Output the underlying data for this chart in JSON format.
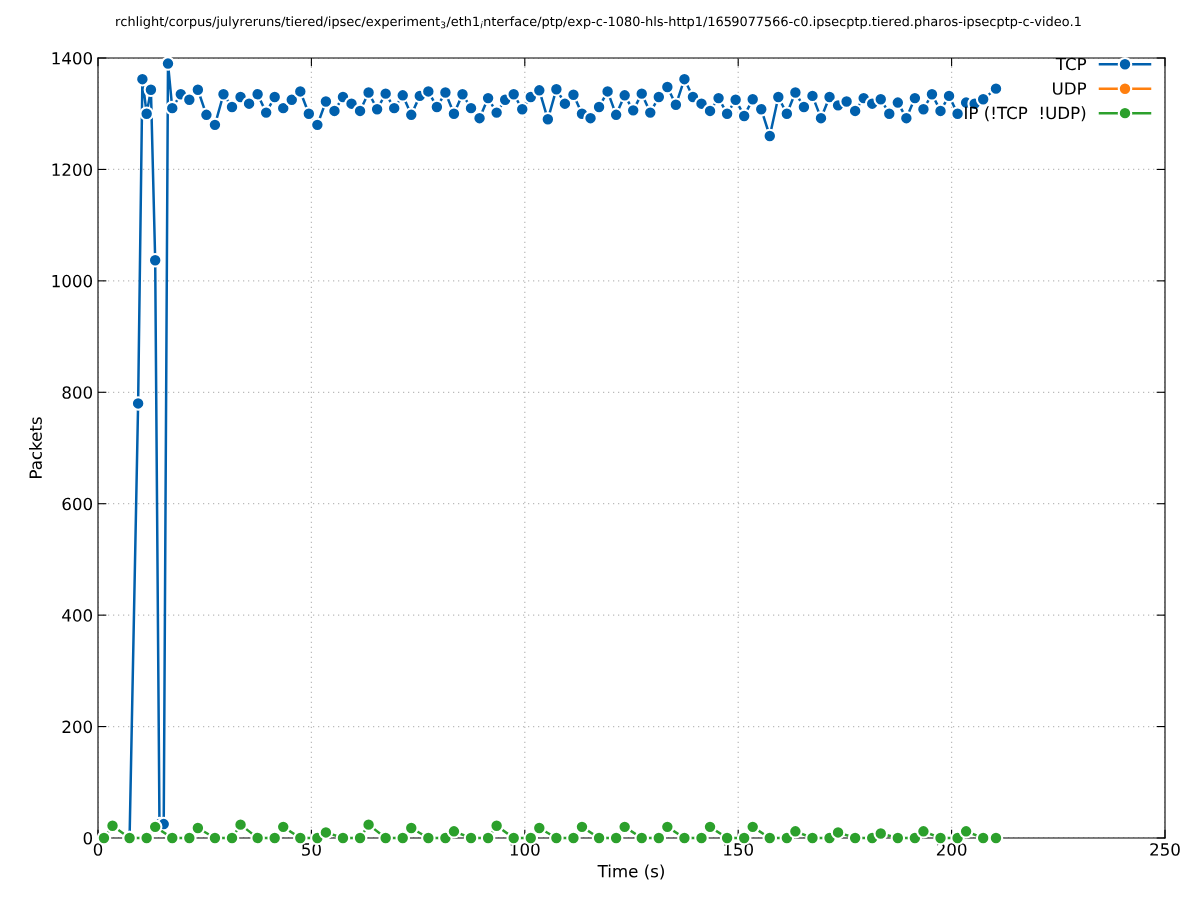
{
  "chart_data": {
    "type": "line",
    "title": "rchlight/corpus/julyreruns/tiered/ipsec/experiment$_{3}$/eth1$_{i}$nterface/ptp/exp-c-1080-hls-http1/1659077566-c0.ipsecptp.tiered.pharos-ipsecptp-c-video.1",
    "xlabel": "Time (s)",
    "ylabel": "Packets",
    "xlim": [
      0,
      250
    ],
    "xticks": [
      0,
      50,
      100,
      150,
      200,
      250
    ],
    "ylim": [
      0,
      1400
    ],
    "yticks": [
      0,
      200,
      400,
      600,
      800,
      1000,
      1200,
      1400
    ],
    "grid": true,
    "legend": "top right",
    "marker": "circle",
    "line_style": "solid",
    "series": [
      {
        "name": "TCP",
        "color": "#0060ad",
        "x": [
          7.4,
          9.4,
          10.4,
          11.4,
          12.4,
          13.4,
          14.4,
          15.4,
          16.4,
          17.4,
          19.4,
          21.4,
          23.4,
          25.4,
          27.4,
          29.4,
          31.4,
          33.4,
          35.4,
          37.4,
          39.4,
          41.4,
          43.4,
          45.4,
          47.4,
          49.4,
          51.4,
          53.4,
          55.4,
          57.4,
          59.4,
          61.4,
          63.4,
          65.4,
          67.4,
          69.4,
          71.4,
          73.4,
          75.4,
          77.4,
          79.4,
          81.4,
          83.4,
          85.4,
          87.4,
          89.4,
          91.4,
          93.4,
          95.4,
          97.4,
          99.4,
          101.4,
          103.4,
          105.4,
          107.4,
          109.4,
          111.4,
          113.4,
          115.4,
          117.4,
          119.4,
          121.4,
          123.4,
          125.4,
          127.4,
          129.4,
          131.4,
          133.4,
          135.4,
          137.4,
          139.4,
          141.4,
          143.4,
          145.4,
          147.4,
          149.4,
          151.4,
          153.4,
          155.4,
          157.4,
          159.4,
          161.4,
          163.4,
          165.4,
          167.4,
          169.4,
          171.4,
          173.4,
          175.4,
          177.4,
          179.4,
          181.4,
          183.4,
          185.4,
          187.4,
          189.4,
          191.4,
          193.4,
          195.4,
          197.4,
          199.4,
          201.4,
          203.4,
          205.4,
          207.4,
          210.4
        ],
        "values": [
          0,
          780,
          1362,
          1300,
          1343,
          1037,
          25,
          25,
          1390,
          1310,
          1335,
          1325,
          1343,
          1298,
          1280,
          1335,
          1312,
          1330,
          1318,
          1335,
          1302,
          1330,
          1310,
          1325,
          1340,
          1300,
          1280,
          1322,
          1305,
          1330,
          1318,
          1305,
          1338,
          1308,
          1336,
          1310,
          1333,
          1298,
          1332,
          1340,
          1312,
          1338,
          1300,
          1335,
          1310,
          1292,
          1328,
          1302,
          1325,
          1335,
          1308,
          1330,
          1342,
          1290,
          1344,
          1318,
          1334,
          1300,
          1292,
          1312,
          1340,
          1298,
          1333,
          1306,
          1336,
          1302,
          1330,
          1348,
          1316,
          1362,
          1330,
          1318,
          1305,
          1328,
          1300,
          1325,
          1296,
          1326,
          1308,
          1260,
          1330,
          1300,
          1338,
          1312,
          1332,
          1292,
          1330,
          1315,
          1322,
          1305,
          1328,
          1318,
          1326,
          1300,
          1320,
          1292,
          1328,
          1308,
          1335,
          1305,
          1332,
          1300,
          1320,
          1318,
          1326,
          1345
        ]
      },
      {
        "name": "UDP",
        "color": "#ff7f0e"
      },
      {
        "name": "IP (!TCP  !UDP)",
        "color": "#2ca02c",
        "x": [
          1.4,
          3.4,
          7.4,
          11.4,
          13.4,
          17.4,
          21.4,
          23.4,
          27.4,
          31.4,
          33.4,
          37.4,
          41.4,
          43.4,
          47.4,
          51.4,
          53.4,
          57.4,
          61.4,
          63.4,
          67.4,
          71.4,
          73.4,
          77.4,
          81.4,
          83.4,
          87.4,
          91.4,
          93.4,
          97.4,
          101.4,
          103.4,
          107.4,
          111.4,
          113.4,
          117.4,
          121.4,
          123.4,
          127.4,
          131.4,
          133.4,
          137.4,
          141.4,
          143.4,
          147.4,
          151.4,
          153.4,
          157.4,
          161.4,
          163.4,
          167.4,
          171.4,
          173.4,
          177.4,
          181.4,
          183.4,
          187.4,
          191.4,
          193.4,
          197.4,
          201.4,
          203.4,
          207.4,
          210.4
        ],
        "values": [
          0,
          22,
          0,
          0,
          20,
          0,
          0,
          18,
          0,
          0,
          24,
          0,
          0,
          20,
          0,
          0,
          10,
          0,
          0,
          24,
          0,
          0,
          18,
          0,
          0,
          12,
          0,
          0,
          22,
          0,
          0,
          18,
          0,
          0,
          20,
          0,
          0,
          20,
          0,
          0,
          20,
          0,
          0,
          20,
          0,
          0,
          20,
          0,
          0,
          12,
          0,
          0,
          10,
          0,
          0,
          8,
          0,
          0,
          12,
          0,
          0,
          12,
          0,
          0
        ]
      }
    ]
  }
}
